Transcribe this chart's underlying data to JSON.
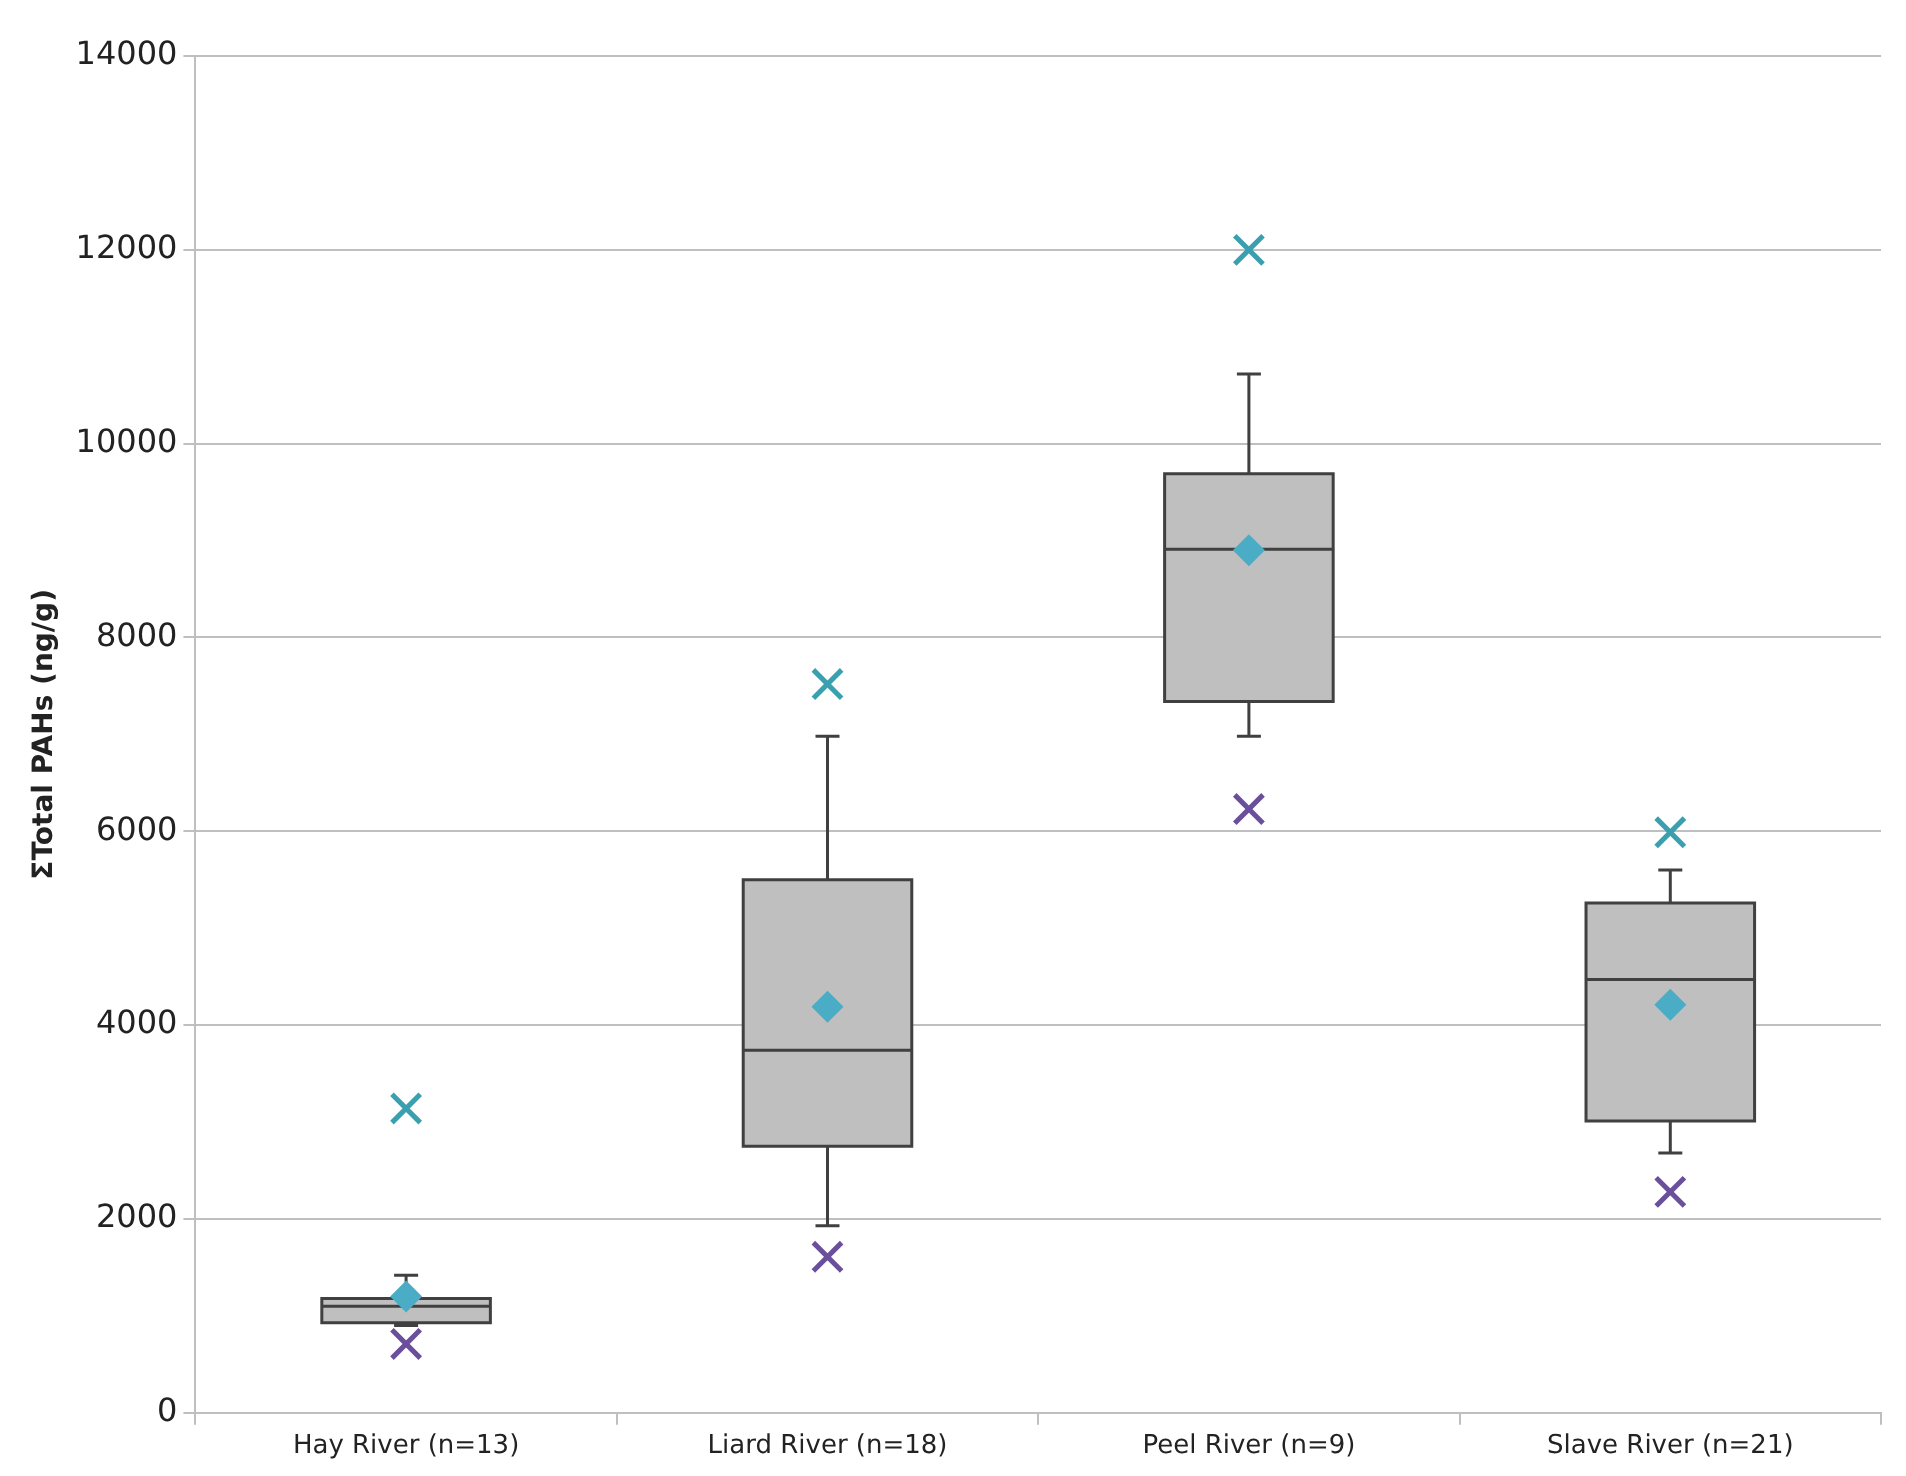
{
  "chart_data": {
    "type": "box",
    "ylabel": "ΣTotal PAHs (ng/g)",
    "categories": [
      "Hay River (n=13)",
      "Liard River (n=18)",
      "Peel River (n=9)",
      "Slave River (n=21)"
    ],
    "ylim": [
      0,
      14000
    ],
    "yticks": [
      0,
      2000,
      4000,
      6000,
      8000,
      10000,
      12000,
      14000
    ],
    "grid": "y",
    "legend": false,
    "series": [
      {
        "color": "#bfbfbf",
        "boxes": [
          {
            "low": 900,
            "q1": 930,
            "median": 1100,
            "q3": 1180,
            "high": 1420,
            "mean": 1200
          },
          {
            "low": 1930,
            "q1": 2750,
            "median": 3740,
            "q3": 5500,
            "high": 6980,
            "mean": 4190
          },
          {
            "low": 6980,
            "q1": 7340,
            "median": 8910,
            "q3": 9690,
            "high": 10720,
            "mean": 8900
          },
          {
            "low": 2680,
            "q1": 3010,
            "median": 4470,
            "q3": 5260,
            "high": 5600,
            "mean": 4210
          }
        ]
      },
      {
        "type": "scatter",
        "color": "#3a9fae",
        "marker": "cross",
        "x": [
          "Hay River (n=13)",
          "Liard River (n=18)",
          "Peel River (n=9)",
          "Slave River (n=21)"
        ],
        "values": [
          3140,
          7520,
          12000,
          5990
        ]
      },
      {
        "type": "scatter",
        "color": "#6a4f9c",
        "marker": "cross",
        "x": [
          "Hay River (n=13)",
          "Liard River (n=18)",
          "Peel River (n=9)",
          "Slave River (n=21)"
        ],
        "values": [
          710,
          1610,
          6230,
          2280
        ]
      }
    ]
  }
}
